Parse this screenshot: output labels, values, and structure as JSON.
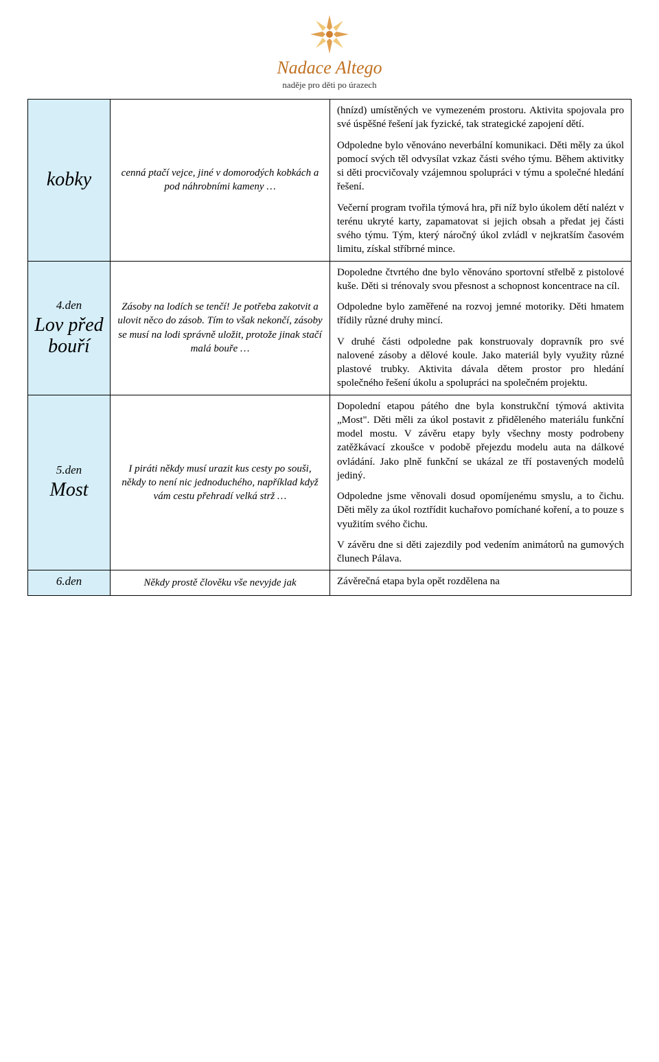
{
  "header": {
    "brand": "Nadace Altego",
    "tagline": "naděje pro děti po úrazech",
    "logo_colors": {
      "outer": "#e0a050",
      "inner": "#f0c878",
      "center": "#d08030"
    }
  },
  "colors": {
    "day_bg": "#d6eef7",
    "border": "#000000",
    "brand_text": "#c07020",
    "body_bg": "#ffffff"
  },
  "rows": [
    {
      "day_title": "kobky",
      "day_num": "",
      "story": "cenná ptačí vejce, jiné v domorodých kobkách a pod náhrobními kameny …",
      "desc": [
        "(hnízd) umístěných ve vymezeném prostoru. Aktivita spojovala pro své úspěšné řešení jak fyzické, tak strategické zapojení dětí.",
        "Odpoledne bylo věnováno neverbální komunikaci. Děti měly za úkol pomocí svých těl odvysílat vzkaz části svého týmu. Během aktivitky si děti procvičovaly vzájemnou spolupráci v týmu a společné hledání řešení.",
        "Večerní program tvořila týmová hra, při níž bylo úkolem dětí nalézt v terénu ukryté karty, zapamatovat si jejich obsah a předat jej části svého týmu. Tým, který náročný úkol zvládl v nejkratším časovém limitu, získal stříbrné mince."
      ]
    },
    {
      "day_num": "4.den",
      "day_title": "Lov před bouří",
      "story": "Zásoby na lodích se tenčí! Je potřeba zakotvit a ulovit něco do zásob. Tím to však nekončí, zásoby se musí na lodi správně uložit, protože jinak stačí malá bouře …",
      "desc": [
        "Dopoledne čtvrtého dne bylo věnováno sportovní střelbě z pistolové kuše. Děti si trénovaly svou přesnost a schopnost koncentrace na cíl.",
        "Odpoledne bylo zaměřené na rozvoj jemné motoriky. Děti hmatem třídily různé druhy mincí.",
        "V druhé části odpoledne pak konstruovaly dopravník pro své nalovené zásoby a dělové koule. Jako materiál byly využity různé plastové trubky. Aktivita dávala dětem prostor pro hledání společného řešení úkolu a spolupráci na společném projektu."
      ]
    },
    {
      "day_num": "5.den",
      "day_title": "Most",
      "story": "I piráti někdy musí urazit kus cesty po souši, někdy to není nic jednoduchého, například když vám cestu přehradí velká strž …",
      "desc": [
        "Dopolední etapou pátého dne byla konstrukční týmová aktivita „Most\". Děti měli za úkol postavit z přiděleného materiálu funkční model mostu. V závěru etapy byly všechny mosty podrobeny zatěžkávací zkoušce v podobě přejezdu modelu auta na dálkové ovládání. Jako plně funkční se ukázal ze tří postavených modelů jediný.",
        "Odpoledne jsme věnovali dosud opomíjenému smyslu, a to čichu. Děti měly za úkol roztřídit kuchařovo pomíchané koření, a to pouze s využitím svého čichu.",
        "V závěru dne si děti zajezdily pod vedením animátorů na gumových člunech Pálava."
      ]
    },
    {
      "day_num": "6.den",
      "day_title": "",
      "story": "Někdy prostě člověku vše nevyjde jak",
      "desc": [
        "Závěrečná etapa byla opět rozdělena na"
      ]
    }
  ]
}
